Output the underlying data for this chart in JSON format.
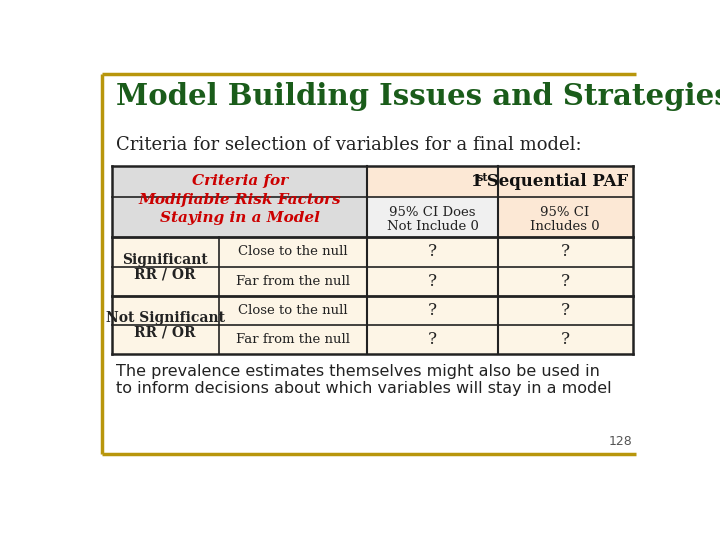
{
  "title": "Model Building Issues and Strategies",
  "title_color": "#1a5c1a",
  "subtitle": "Criteria for selection of variables for a final model:",
  "subtitle_color": "#222222",
  "bg_color": "#ffffff",
  "border_color": "#b8960c",
  "table": {
    "header_left_lines": [
      "Criteria for",
      "Modifiable Risk Factors",
      "Staying in a Model"
    ],
    "header_left_color": "#cc0000",
    "header_top_color": "#111111",
    "col2_header": "95% CI Does\nNot Include 0",
    "col3_header": "95% CI\nIncludes 0",
    "header_left_bg": "#dcdcdc",
    "header_top_bg": "#fce8d5",
    "col2_bg": "#f0f0f0",
    "col3_bg": "#fce8d5",
    "row_bg": "#fdf5e6",
    "table_line_color": "#222222",
    "rows_sig": [
      "Close to the null",
      "Far from the null"
    ],
    "rows_notsig": [
      "Close to the null",
      "Far from the null"
    ]
  },
  "footnote1": "The prevalence estimates themselves might also be used in",
  "footnote2": "to inform decisions about which variables will stay in a model",
  "footnote_color": "#222222",
  "page_num": "128",
  "page_num_color": "#555555"
}
